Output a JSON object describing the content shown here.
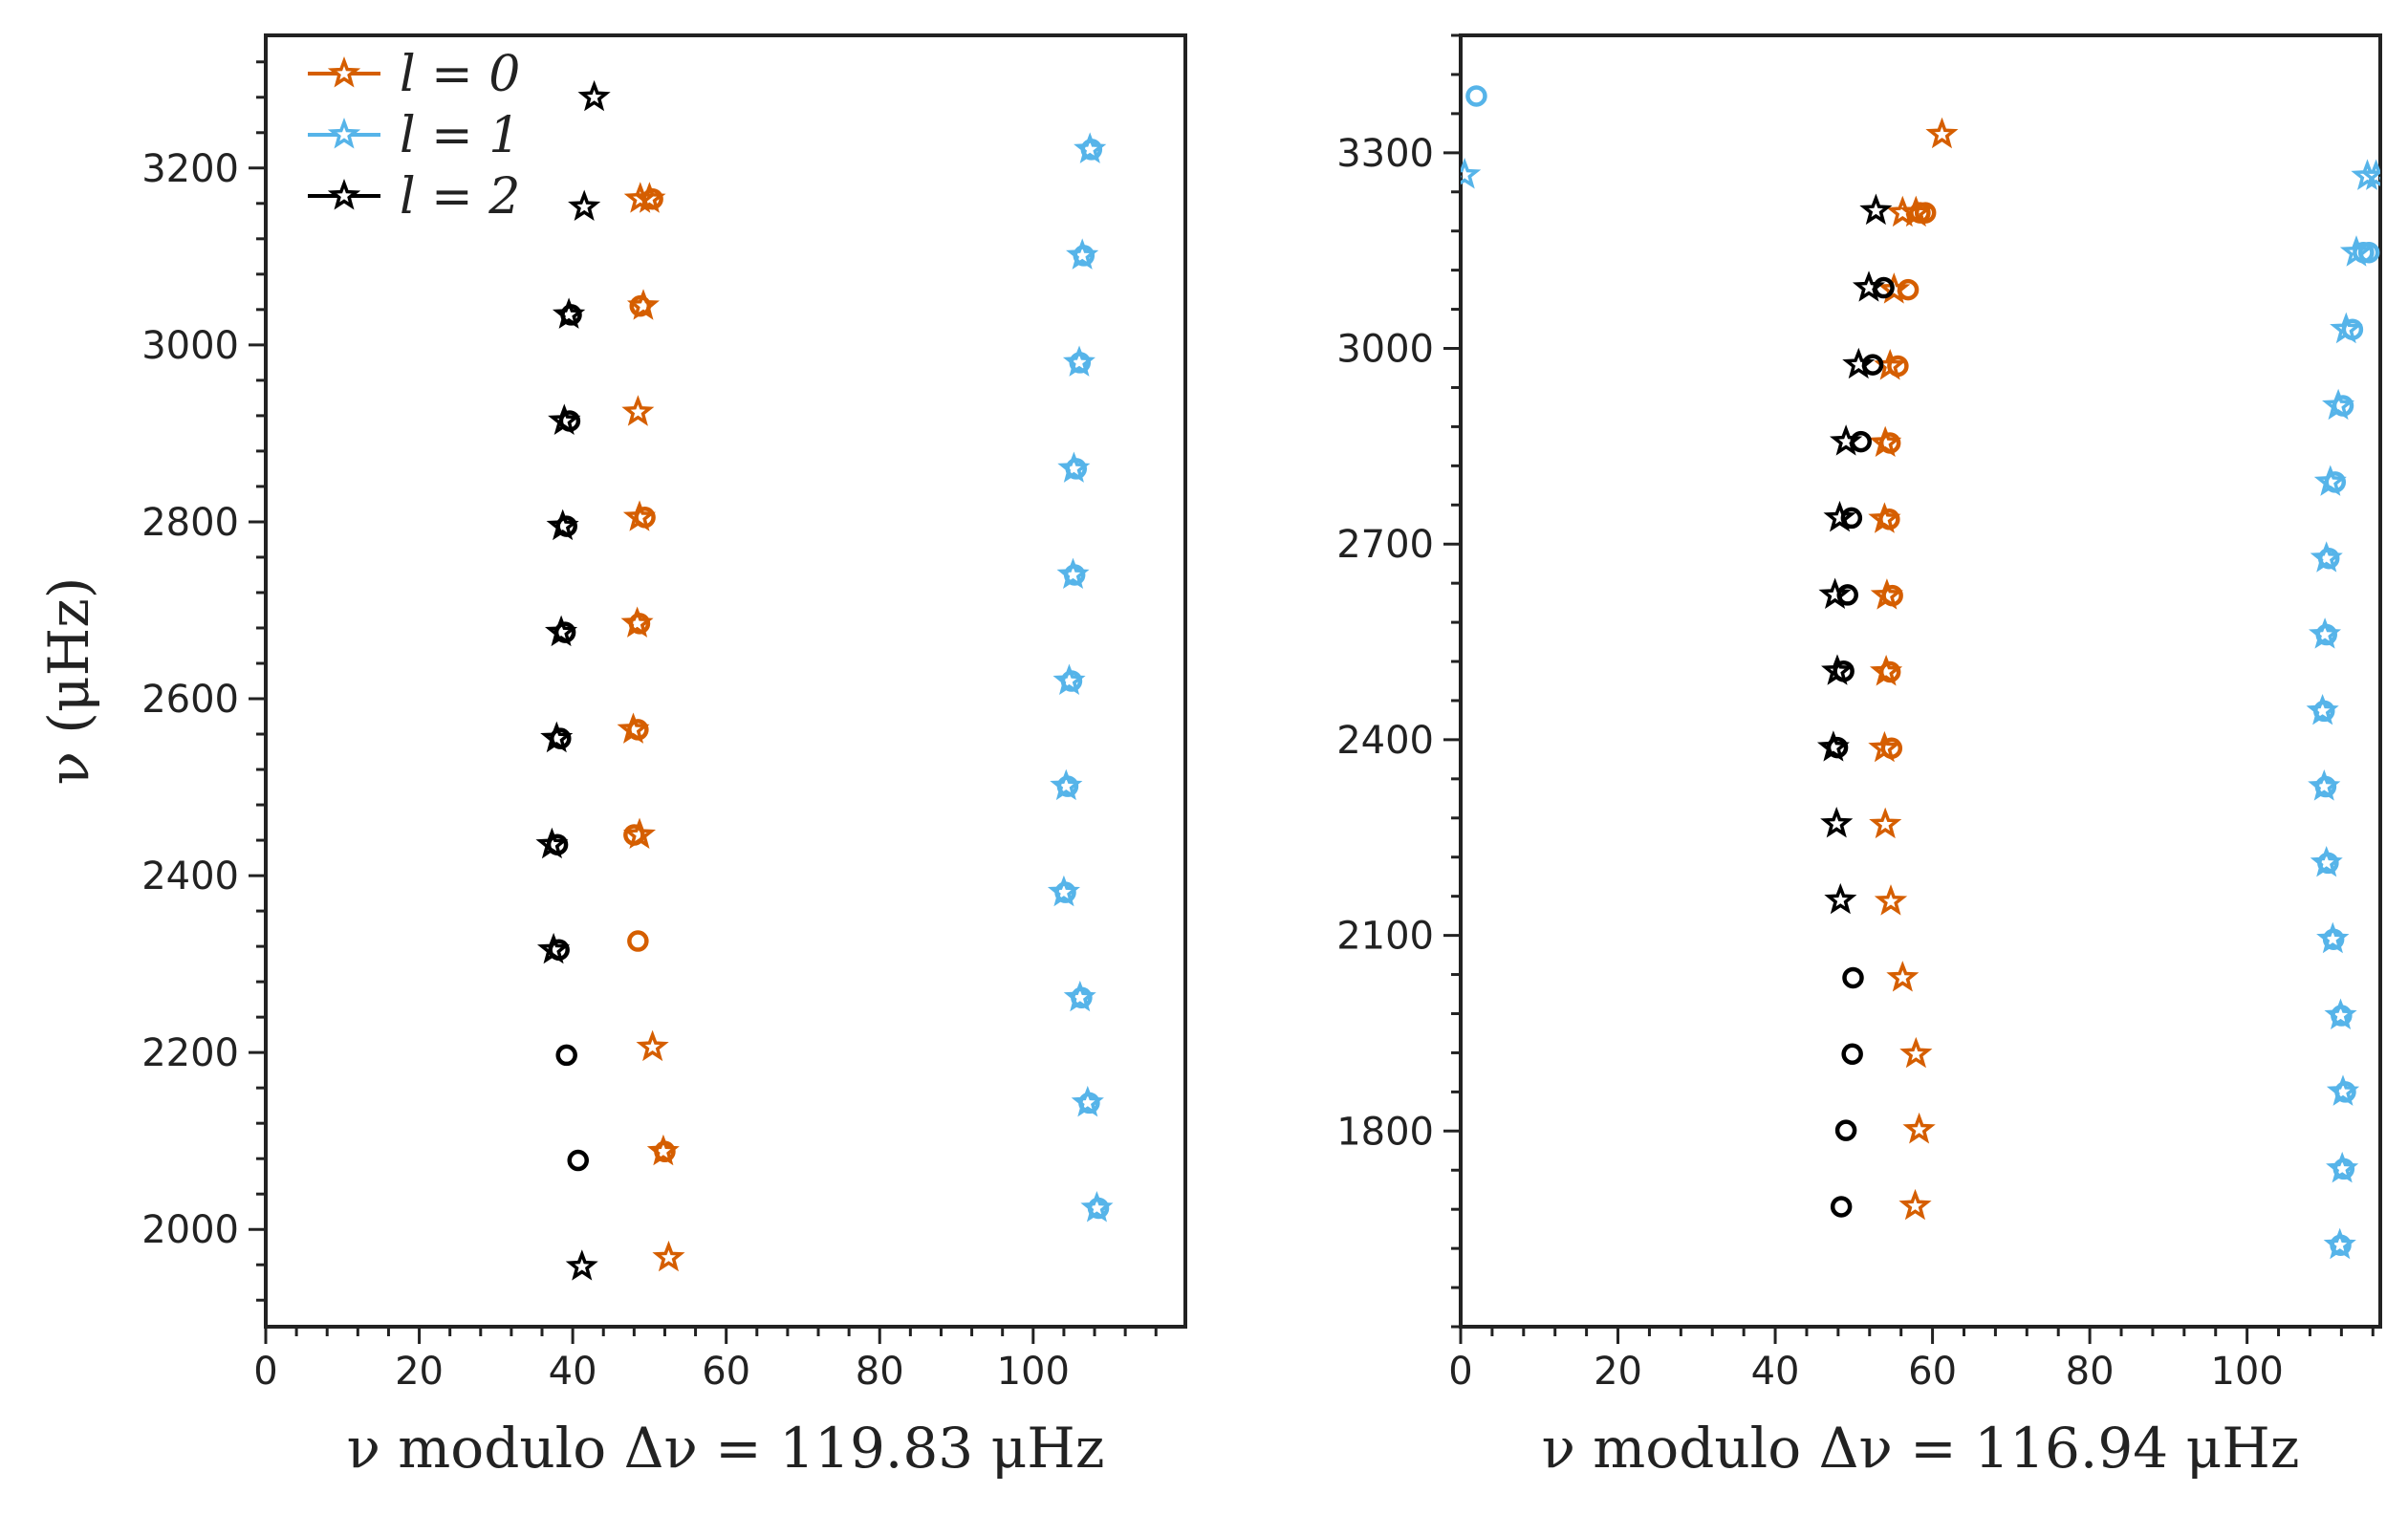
{
  "chart_data": [
    {
      "type": "scatter",
      "title": "",
      "xlabel": "ν modulo Δν = 119.83 μHz",
      "ylabel": "ν (μHz)",
      "xlim": [
        0,
        119.83
      ],
      "ylim": [
        1890,
        3350
      ],
      "xticks": [
        0,
        20,
        40,
        60,
        80,
        100
      ],
      "yticks": [
        2000,
        2200,
        2400,
        2600,
        2800,
        3000,
        3200
      ],
      "legend_position": "top-left",
      "legend": [
        {
          "label": "l = 0",
          "color": "#d55e00"
        },
        {
          "label": "l = 1",
          "color": "#56b4e9"
        },
        {
          "label": "l = 2",
          "color": "#000000"
        }
      ],
      "series": [
        {
          "name": "l = 0",
          "color": "#d55e00",
          "stars": {
            "x": [
              52.5,
              51.8,
              50.4,
              48.7,
              47.9,
              48.4,
              48.7,
              48.5,
              49.2,
              48.8,
              50.0
            ],
            "y": [
              1968,
              2088,
              2206,
              2446,
              2565,
              2685,
              2805,
              2924,
              3044,
              3165,
              3165
            ]
          },
          "circles": {
            "x": [
              52.0,
              48.5,
              48.0,
              48.5,
              48.7,
              49.4,
              48.8,
              50.4
            ],
            "y": [
              2088,
              2326,
              2446,
              2565,
              2685,
              2805,
              3044,
              3165
            ]
          }
        },
        {
          "name": "l = 1",
          "color": "#56b4e9",
          "stars": {
            "x": [
              108.3,
              107.1,
              106.1,
              104.0,
              104.3,
              104.7,
              105.2,
              105.3,
              106.0,
              106.4,
              107.4
            ],
            "y": [
              2024,
              2143,
              2262,
              2381,
              2501,
              2620,
              2740,
              2860,
              2980,
              3101,
              3221
            ]
          },
          "circles": {
            "x": [
              108.5,
              107.3,
              106.3,
              104.2,
              104.5,
              105.0,
              105.4,
              105.6,
              106.1,
              106.6,
              107.6
            ],
            "y": [
              2024,
              2143,
              2262,
              2381,
              2501,
              2620,
              2740,
              2860,
              2980,
              3101,
              3221
            ]
          }
        },
        {
          "name": "l = 2",
          "color": "#000000",
          "stars": {
            "x": [
              41.2,
              37.5,
              37.3,
              37.9,
              38.5,
              38.7,
              38.9,
              39.5,
              41.5,
              42.8
            ],
            "y": [
              1958,
              2316,
              2435,
              2555,
              2675,
              2795,
              2914,
              3034,
              3156,
              3280
            ]
          },
          "circles": {
            "x": [
              40.7,
              39.2,
              38.2,
              38.0,
              38.4,
              39.0,
              39.2,
              39.6,
              39.8
            ],
            "y": [
              2078,
              2197,
              2316,
              2435,
              2555,
              2675,
              2795,
              2914,
              3034
            ]
          }
        }
      ]
    },
    {
      "type": "scatter",
      "title": "",
      "xlabel": "ν modulo Δν = 116.94 μHz",
      "ylabel": "",
      "xlim": [
        0,
        116.94
      ],
      "ylim": [
        1500,
        3480
      ],
      "xticks": [
        0,
        20,
        40,
        60,
        80,
        100
      ],
      "yticks": [
        1800,
        2100,
        2400,
        2700,
        3000,
        3300
      ],
      "series": [
        {
          "name": "l = 0",
          "color": "#d55e00",
          "stars": {
            "x": [
              57.8,
              58.3,
              57.9,
              56.2,
              54.7,
              54.0,
              53.9,
              54.1,
              54.2,
              53.9,
              54.0,
              54.6,
              55.1,
              56.2,
              57.9,
              61.2
            ],
            "y": [
              1685,
              1802,
              1918,
              2035,
              2152,
              2270,
              2387,
              2504,
              2621,
              2738,
              2855,
              2973,
              3090,
              3208,
              3208,
              3328
            ]
          },
          "circles": {
            "x": [
              54.8,
              54.6,
              54.9,
              54.5,
              54.6,
              55.6,
              56.9,
              58.4,
              59.1
            ],
            "y": [
              2387,
              2504,
              2621,
              2738,
              2855,
              2973,
              3090,
              3208,
              3208
            ]
          }
        },
        {
          "name": "l = 1",
          "color": "#56b4e9",
          "stars": {
            "x": [
              111.8,
              112.1,
              112.2,
              111.9,
              110.9,
              110.1,
              109.8,
              109.6,
              109.9,
              110.1,
              110.6,
              111.6,
              112.6,
              113.9,
              115.3,
              116.4,
              0.5
            ],
            "y": [
              1625,
              1742,
              1860,
              1977,
              2094,
              2211,
              2328,
              2444,
              2561,
              2678,
              2795,
              2912,
              3029,
              3147,
              3264,
              3264,
              3266
            ]
          },
          "circles": {
            "x": [
              111.9,
              112.3,
              112.5,
              112.0,
              111.0,
              110.3,
              110.0,
              109.8,
              110.1,
              110.4,
              111.2,
              112.2,
              113.4,
              114.8,
              115.5,
              2.0
            ],
            "y": [
              1625,
              1742,
              1860,
              1977,
              2094,
              2211,
              2328,
              2444,
              2561,
              2678,
              2795,
              2912,
              3029,
              3147,
              3147,
              3387
            ]
          }
        },
        {
          "name": "l = 2",
          "color": "#000000",
          "stars": {
            "x": [
              48.3,
              47.8,
              47.4,
              47.9,
              47.6,
              48.2,
              49.0,
              50.6,
              51.9,
              52.8
            ],
            "y": [
              2154,
              2271,
              2388,
              2505,
              2622,
              2740,
              2857,
              2975,
              3093,
              3211
            ]
          },
          "circles": {
            "x": [
              48.4,
              49.0,
              49.8,
              49.9,
              47.9,
              48.7,
              49.2,
              49.7,
              50.9,
              52.4,
              53.8
            ],
            "y": [
              1684,
              1801,
              1918,
              2035,
              2388,
              2505,
              2622,
              2740,
              2857,
              2975,
              3093
            ]
          }
        }
      ]
    }
  ]
}
